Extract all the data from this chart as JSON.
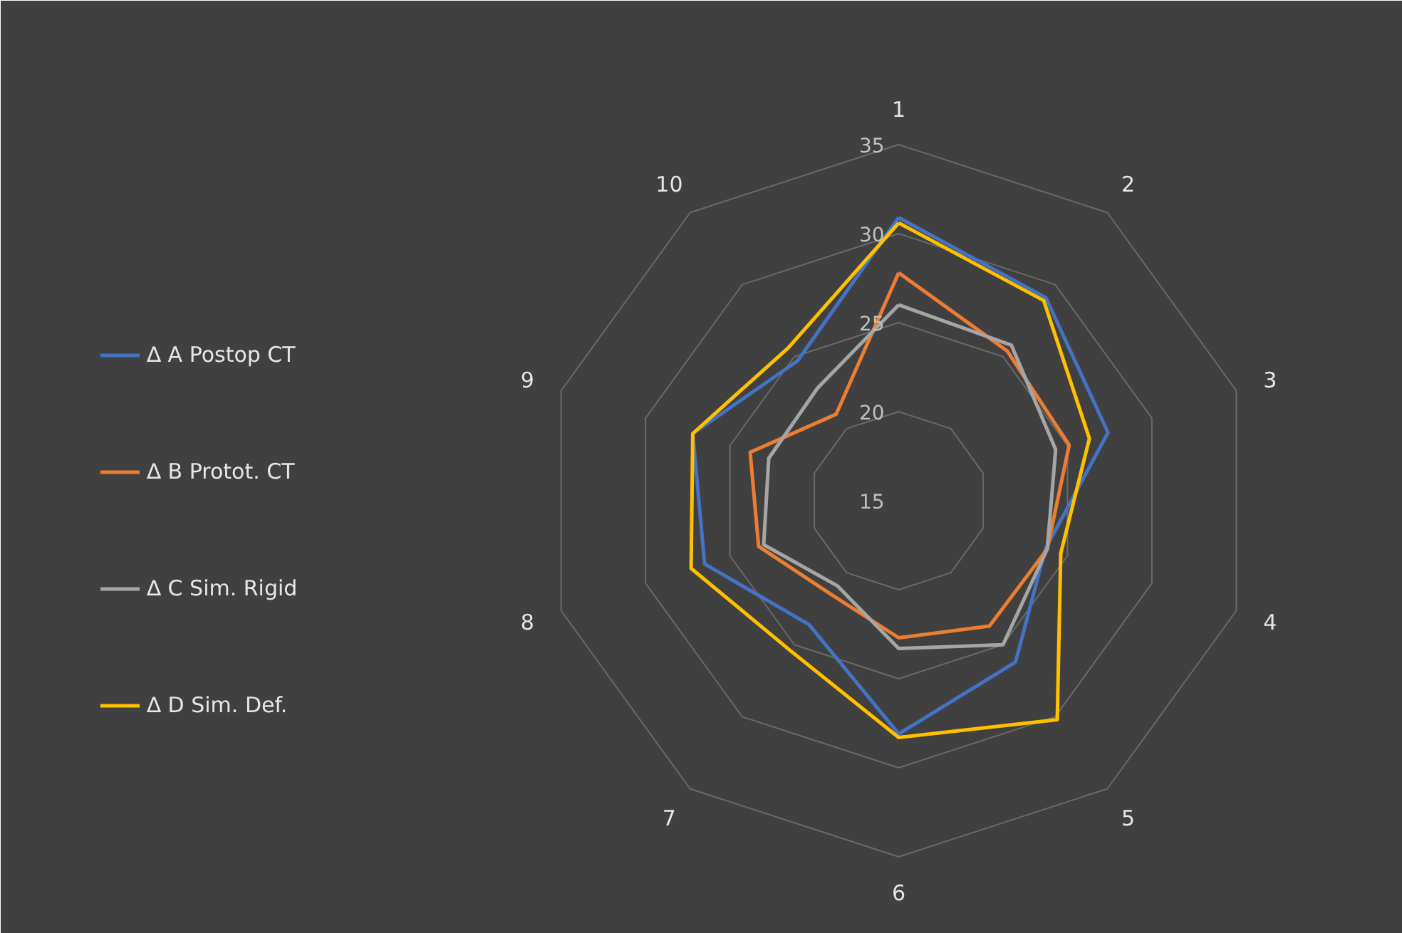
{
  "chart_data": {
    "type": "radar",
    "categories": [
      "1",
      "2",
      "3",
      "4",
      "5",
      "6",
      "7",
      "8",
      "9",
      "10"
    ],
    "ylim": [
      15,
      35
    ],
    "yticks": [
      15,
      20,
      25,
      30,
      35
    ],
    "grid": true,
    "legend": "left",
    "line_style": "solid",
    "marker": "none",
    "series": [
      {
        "name": "∆ A Postop CT",
        "color": "#4472c4",
        "values": [
          30.9,
          29.1,
          27.4,
          23.7,
          26.2,
          28.1,
          23.6,
          26.5,
          27.2,
          24.7
        ]
      },
      {
        "name": "∆ B Protot. CT",
        "color": "#ed7d31",
        "values": [
          27.8,
          25.4,
          25.1,
          23.8,
          23.7,
          22.7,
          21.5,
          23.3,
          23.8,
          21.0
        ]
      },
      {
        "name": "∆ C Sim. Rigid",
        "color": "#a5a5a5",
        "values": [
          26.0,
          25.8,
          24.3,
          23.8,
          25.0,
          23.3,
          20.9,
          23.0,
          22.7,
          22.8
        ]
      },
      {
        "name": "∆ D Sim. Def.",
        "color": "#ffc000",
        "values": [
          30.6,
          28.9,
          26.3,
          24.6,
          30.2,
          28.3,
          25.4,
          27.3,
          27.2,
          25.6
        ]
      }
    ]
  }
}
